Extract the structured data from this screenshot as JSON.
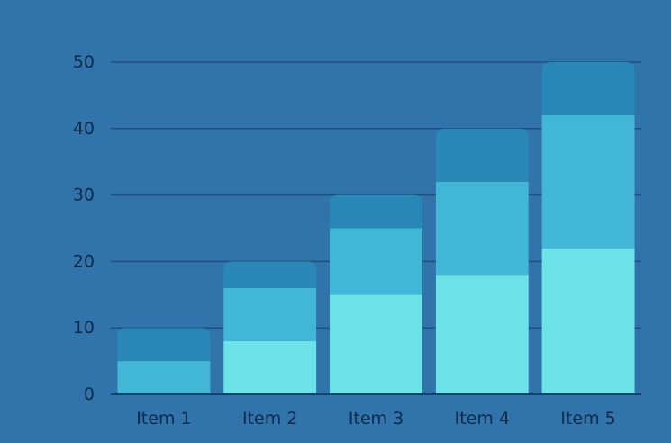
{
  "chart_data": {
    "type": "bar",
    "stacked": true,
    "categories": [
      "Item 1",
      "Item 2",
      "Item 3",
      "Item 4",
      "Item 5"
    ],
    "series": [
      {
        "values": [
          0,
          8,
          15,
          18,
          22
        ],
        "color": "#6be3e8"
      },
      {
        "values": [
          5,
          8,
          10,
          14,
          20
        ],
        "color": "#41b6d6"
      },
      {
        "values": [
          5,
          4,
          5,
          8,
          8
        ],
        "color": "#2a88b8"
      }
    ],
    "ylim": [
      0,
      50
    ],
    "yticks": [
      "0",
      "10",
      "20",
      "30",
      "40",
      "50"
    ],
    "grid": true,
    "legend": "none",
    "title": "",
    "xlabel": "",
    "ylabel": "",
    "colors": {
      "background": "#3173ab",
      "grid": "#1f4f7c",
      "text": "#0f2a48"
    }
  }
}
